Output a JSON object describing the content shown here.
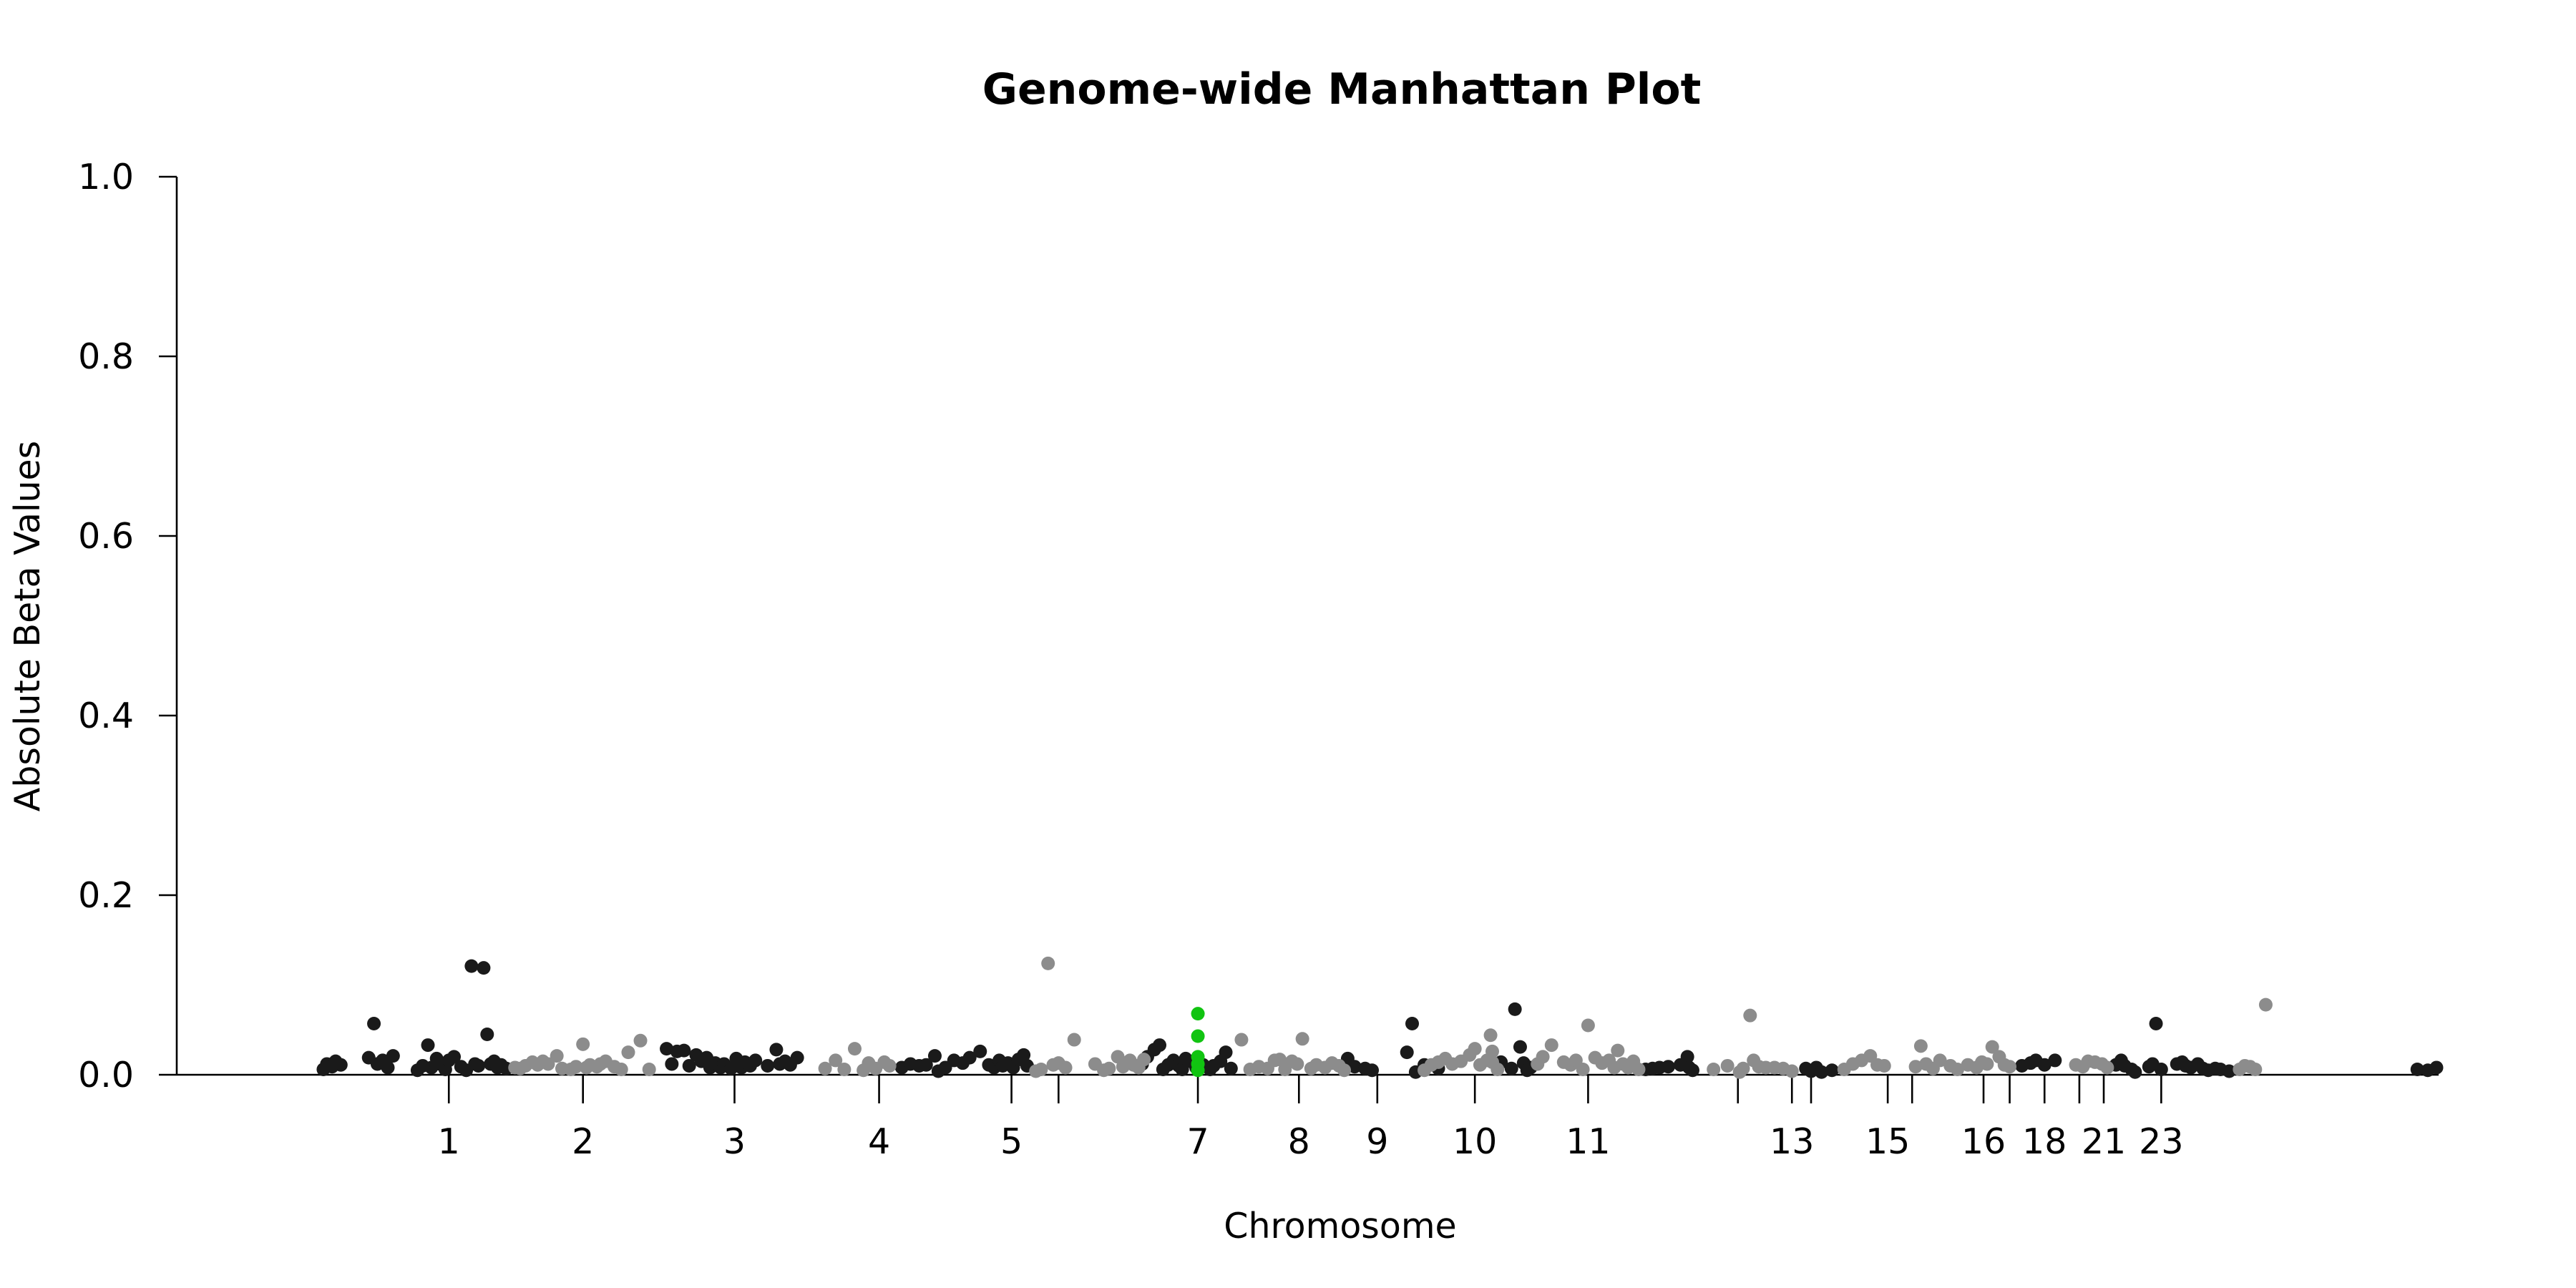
{
  "chart_data": {
    "type": "scatter",
    "title": "Genome-wide Manhattan Plot",
    "xlabel": "Chromosome",
    "ylabel": "Absolute Beta Values",
    "ylim": [
      0,
      1
    ],
    "yticks": [
      0.0,
      0.2,
      0.4,
      0.6,
      0.8,
      1.0
    ],
    "ytick_labels": [
      "0.0",
      "0.2",
      "0.4",
      "0.6",
      "0.8",
      "1.0"
    ],
    "xlim": [
      -11,
      1241
    ],
    "xticks": [
      100,
      177,
      264,
      347,
      423,
      450,
      530,
      588,
      633,
      689,
      754,
      840,
      871,
      882,
      926,
      940,
      981,
      996,
      1016,
      1036,
      1050,
      1083
    ],
    "xtick_labels": [
      "1",
      "2",
      "3",
      "4",
      "5",
      "",
      "7",
      "8",
      "9",
      "10",
      "11",
      "",
      "13",
      "",
      "15",
      "",
      "16",
      "",
      "18",
      "",
      "21",
      "23"
    ],
    "grid": false,
    "legend": "none",
    "colors": {
      "odd_chromosomes": "#1a1a1a",
      "even_chromosomes": "#8c8c8c",
      "highlight": "#11c411"
    },
    "series": [
      {
        "color_role": "odd_chromosomes",
        "points": [
          [
            28,
            0.006
          ],
          [
            30,
            0.012
          ],
          [
            33,
            0.009
          ],
          [
            35,
            0.015
          ],
          [
            38,
            0.011
          ],
          [
            54,
            0.019
          ],
          [
            57,
            0.057
          ],
          [
            59,
            0.012
          ],
          [
            62,
            0.016
          ],
          [
            65,
            0.008
          ],
          [
            68,
            0.021
          ],
          [
            82,
            0.005
          ],
          [
            85,
            0.01
          ],
          [
            88,
            0.033
          ],
          [
            90,
            0.008
          ],
          [
            93,
            0.018
          ],
          [
            95,
            0.012
          ],
          [
            98,
            0.006
          ],
          [
            100,
            0.016
          ],
          [
            103,
            0.02
          ],
          [
            107,
            0.009
          ],
          [
            110,
            0.005
          ],
          [
            113,
            0.121
          ],
          [
            115,
            0.012
          ],
          [
            117,
            0.01
          ],
          [
            120,
            0.119
          ],
          [
            122,
            0.045
          ],
          [
            124,
            0.012
          ],
          [
            126,
            0.015
          ],
          [
            128,
            0.008
          ],
          [
            130,
            0.011
          ],
          [
            133,
            0.007
          ],
          [
            225,
            0.029
          ],
          [
            228,
            0.012
          ],
          [
            231,
            0.026
          ],
          [
            235,
            0.027
          ],
          [
            238,
            0.01
          ],
          [
            242,
            0.022
          ],
          [
            245,
            0.015
          ],
          [
            248,
            0.019
          ],
          [
            250,
            0.008
          ],
          [
            253,
            0.013
          ],
          [
            256,
            0.008
          ],
          [
            258,
            0.012
          ],
          [
            262,
            0.007
          ],
          [
            265,
            0.018
          ],
          [
            268,
            0.008
          ],
          [
            270,
            0.014
          ],
          [
            273,
            0.01
          ],
          [
            276,
            0.016
          ],
          [
            283,
            0.01
          ],
          [
            288,
            0.028
          ],
          [
            290,
            0.012
          ],
          [
            293,
            0.015
          ],
          [
            296,
            0.011
          ],
          [
            300,
            0.019
          ],
          [
            360,
            0.008
          ],
          [
            365,
            0.012
          ],
          [
            370,
            0.01
          ],
          [
            374,
            0.011
          ],
          [
            379,
            0.021
          ],
          [
            381,
            0.004
          ],
          [
            385,
            0.008
          ],
          [
            390,
            0.016
          ],
          [
            395,
            0.013
          ],
          [
            399,
            0.019
          ],
          [
            405,
            0.026
          ],
          [
            410,
            0.011
          ],
          [
            413,
            0.008
          ],
          [
            416,
            0.016
          ],
          [
            418,
            0.01
          ],
          [
            421,
            0.013
          ],
          [
            424,
            0.008
          ],
          [
            427,
            0.017
          ],
          [
            430,
            0.022
          ],
          [
            432,
            0.01
          ],
          [
            498,
            0.012
          ],
          [
            501,
            0.02
          ],
          [
            505,
            0.028
          ],
          [
            508,
            0.033
          ],
          [
            510,
            0.006
          ],
          [
            513,
            0.011
          ],
          [
            516,
            0.016
          ],
          [
            519,
            0.01
          ],
          [
            521,
            0.006
          ],
          [
            523,
            0.018
          ],
          [
            527,
            0.014
          ],
          [
            529,
            0.008
          ],
          [
            533,
            0.011
          ],
          [
            537,
            0.006
          ],
          [
            539,
            0.01
          ],
          [
            543,
            0.015
          ],
          [
            546,
            0.025
          ],
          [
            549,
            0.007
          ],
          [
            616,
            0.018
          ],
          [
            620,
            0.009
          ],
          [
            626,
            0.007
          ],
          [
            630,
            0.005
          ],
          [
            650,
            0.025
          ],
          [
            653,
            0.057
          ],
          [
            655,
            0.003
          ],
          [
            660,
            0.011
          ],
          [
            668,
            0.007
          ],
          [
            704,
            0.014
          ],
          [
            710,
            0.007
          ],
          [
            712,
            0.073
          ],
          [
            715,
            0.031
          ],
          [
            717,
            0.013
          ],
          [
            719,
            0.005
          ],
          [
            721,
            0.008
          ],
          [
            787,
            0.006
          ],
          [
            791,
            0.007
          ],
          [
            795,
            0.008
          ],
          [
            800,
            0.009
          ],
          [
            807,
            0.011
          ],
          [
            811,
            0.02
          ],
          [
            812,
            0.008
          ],
          [
            814,
            0.005
          ],
          [
            879,
            0.007
          ],
          [
            882,
            0.004
          ],
          [
            885,
            0.008
          ],
          [
            888,
            0.003
          ],
          [
            894,
            0.005
          ],
          [
            1003,
            0.01
          ],
          [
            1008,
            0.013
          ],
          [
            1011,
            0.016
          ],
          [
            1016,
            0.011
          ],
          [
            1022,
            0.016
          ],
          [
            1057,
            0.011
          ],
          [
            1060,
            0.016
          ],
          [
            1062,
            0.01
          ],
          [
            1066,
            0.006
          ],
          [
            1068,
            0.003
          ],
          [
            1076,
            0.009
          ],
          [
            1078,
            0.012
          ],
          [
            1080,
            0.057
          ],
          [
            1083,
            0.006
          ],
          [
            1092,
            0.012
          ],
          [
            1095,
            0.014
          ],
          [
            1097,
            0.01
          ],
          [
            1100,
            0.008
          ],
          [
            1104,
            0.012
          ],
          [
            1107,
            0.007
          ],
          [
            1110,
            0.005
          ],
          [
            1114,
            0.007
          ],
          [
            1117,
            0.006
          ],
          [
            1122,
            0.004
          ],
          [
            1230,
            0.006
          ],
          [
            1236,
            0.005
          ],
          [
            1241,
            0.008
          ]
        ]
      },
      {
        "color_role": "even_chromosomes",
        "points": [
          [
            138,
            0.008
          ],
          [
            141,
            0.007
          ],
          [
            144,
            0.01
          ],
          [
            148,
            0.014
          ],
          [
            151,
            0.011
          ],
          [
            154,
            0.015
          ],
          [
            157,
            0.012
          ],
          [
            162,
            0.021
          ],
          [
            165,
            0.007
          ],
          [
            170,
            0.006
          ],
          [
            173,
            0.009
          ],
          [
            177,
            0.034
          ],
          [
            179,
            0.008
          ],
          [
            181,
            0.011
          ],
          [
            185,
            0.009
          ],
          [
            187,
            0.012
          ],
          [
            190,
            0.015
          ],
          [
            195,
            0.009
          ],
          [
            199,
            0.006
          ],
          [
            203,
            0.025
          ],
          [
            210,
            0.038
          ],
          [
            215,
            0.006
          ],
          [
            316,
            0.007
          ],
          [
            322,
            0.016
          ],
          [
            327,
            0.006
          ],
          [
            333,
            0.029
          ],
          [
            338,
            0.005
          ],
          [
            341,
            0.013
          ],
          [
            345,
            0.007
          ],
          [
            350,
            0.014
          ],
          [
            353,
            0.01
          ],
          [
            437,
            0.004
          ],
          [
            440,
            0.006
          ],
          [
            444,
            0.124
          ],
          [
            447,
            0.011
          ],
          [
            450,
            0.013
          ],
          [
            454,
            0.008
          ],
          [
            459,
            0.039
          ],
          [
            471,
            0.012
          ],
          [
            476,
            0.005
          ],
          [
            479,
            0.007
          ],
          [
            484,
            0.02
          ],
          [
            487,
            0.009
          ],
          [
            491,
            0.016
          ],
          [
            493,
            0.011
          ],
          [
            496,
            0.008
          ],
          [
            499,
            0.017
          ],
          [
            555,
            0.039
          ],
          [
            560,
            0.006
          ],
          [
            565,
            0.009
          ],
          [
            570,
            0.007
          ],
          [
            574,
            0.016
          ],
          [
            577,
            0.017
          ],
          [
            580,
            0.006
          ],
          [
            584,
            0.015
          ],
          [
            587,
            0.012
          ],
          [
            590,
            0.04
          ],
          [
            595,
            0.007
          ],
          [
            598,
            0.011
          ],
          [
            603,
            0.008
          ],
          [
            607,
            0.013
          ],
          [
            611,
            0.01
          ],
          [
            614,
            0.005
          ],
          [
            660,
            0.005
          ],
          [
            664,
            0.011
          ],
          [
            668,
            0.014
          ],
          [
            672,
            0.018
          ],
          [
            676,
            0.012
          ],
          [
            681,
            0.015
          ],
          [
            686,
            0.022
          ],
          [
            689,
            0.029
          ],
          [
            692,
            0.011
          ],
          [
            696,
            0.016
          ],
          [
            699,
            0.014
          ],
          [
            702,
            0.006
          ],
          [
            698,
            0.044
          ],
          [
            699,
            0.026
          ],
          [
            725,
            0.012
          ],
          [
            728,
            0.02
          ],
          [
            733,
            0.033
          ],
          [
            740,
            0.014
          ],
          [
            744,
            0.011
          ],
          [
            747,
            0.016
          ],
          [
            751,
            0.006
          ],
          [
            754,
            0.055
          ],
          [
            758,
            0.019
          ],
          [
            762,
            0.013
          ],
          [
            766,
            0.016
          ],
          [
            769,
            0.008
          ],
          [
            771,
            0.027
          ],
          [
            774,
            0.012
          ],
          [
            777,
            0.008
          ],
          [
            780,
            0.015
          ],
          [
            783,
            0.006
          ],
          [
            826,
            0.006
          ],
          [
            834,
            0.01
          ],
          [
            841,
            0.003
          ],
          [
            843,
            0.007
          ],
          [
            847,
            0.066
          ],
          [
            849,
            0.016
          ],
          [
            852,
            0.009
          ],
          [
            856,
            0.008
          ],
          [
            861,
            0.008
          ],
          [
            866,
            0.007
          ],
          [
            871,
            0.004
          ],
          [
            901,
            0.006
          ],
          [
            906,
            0.012
          ],
          [
            911,
            0.016
          ],
          [
            916,
            0.021
          ],
          [
            920,
            0.011
          ],
          [
            924,
            0.01
          ],
          [
            942,
            0.009
          ],
          [
            945,
            0.032
          ],
          [
            948,
            0.012
          ],
          [
            952,
            0.007
          ],
          [
            956,
            0.016
          ],
          [
            962,
            0.01
          ],
          [
            966,
            0.006
          ],
          [
            972,
            0.011
          ],
          [
            977,
            0.008
          ],
          [
            980,
            0.014
          ],
          [
            983,
            0.012
          ],
          [
            986,
            0.031
          ],
          [
            990,
            0.02
          ],
          [
            993,
            0.011
          ],
          [
            996,
            0.009
          ],
          [
            1034,
            0.011
          ],
          [
            1038,
            0.009
          ],
          [
            1041,
            0.015
          ],
          [
            1045,
            0.014
          ],
          [
            1049,
            0.012
          ],
          [
            1052,
            0.008
          ],
          [
            1128,
            0.006
          ],
          [
            1131,
            0.01
          ],
          [
            1134,
            0.009
          ],
          [
            1137,
            0.006
          ],
          [
            1143,
            0.078
          ]
        ]
      },
      {
        "color_role": "highlight",
        "points": [
          [
            530,
            0.068
          ],
          [
            530,
            0.043
          ],
          [
            530,
            0.02
          ],
          [
            530,
            0.012
          ],
          [
            530,
            0.005
          ]
        ]
      }
    ]
  }
}
